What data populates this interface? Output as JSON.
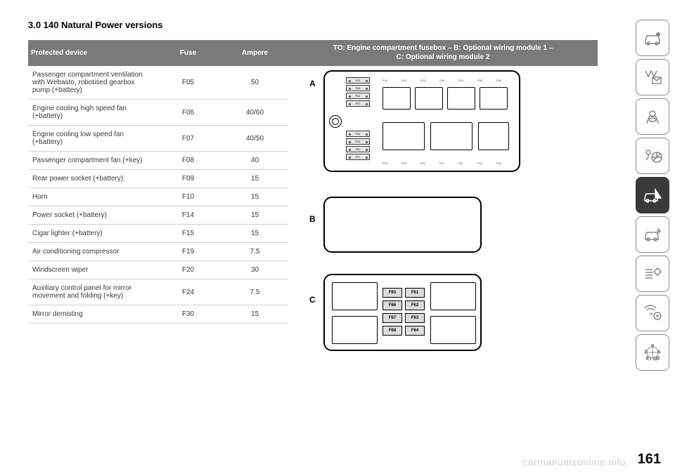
{
  "title": "3.0 140 Natural Power versions",
  "table": {
    "headers": {
      "device": "Protected device",
      "fuse": "Fuse",
      "ampere": "Ampere",
      "to": "TO: Engine compartment fusebox – B: Optional wiring module 1 –\nC: Optional wiring module 2"
    },
    "rows": [
      {
        "device": "Passenger compartment ventilation with Webasto, robotised gearbox pump (+battery)",
        "fuse": "F05",
        "ampere": "50"
      },
      {
        "device": "Engine cooling high speed fan (+battery)",
        "fuse": "F06",
        "ampere": "40/60"
      },
      {
        "device": "Engine cooling low speed fan (+battery)",
        "fuse": "F07",
        "ampere": "40/50"
      },
      {
        "device": "Passenger compartment fan (+key)",
        "fuse": "F08",
        "ampere": "40"
      },
      {
        "device": "Rear power socket (+battery)",
        "fuse": "F09",
        "ampere": "15"
      },
      {
        "device": "Horn",
        "fuse": "F10",
        "ampere": "15"
      },
      {
        "device": "Power socket (+battery)",
        "fuse": "F14",
        "ampere": "15"
      },
      {
        "device": "Cigar lighter (+battery)",
        "fuse": "F15",
        "ampere": "15"
      },
      {
        "device": "Air conditioning compressor",
        "fuse": "F19",
        "ampere": "7.5"
      },
      {
        "device": "Windscreen wiper",
        "fuse": "F20",
        "ampere": "30"
      },
      {
        "device": "Auxiliary control panel for mirror movement and folding (+key)",
        "fuse": "F24",
        "ampere": "7.5"
      },
      {
        "device": "Mirror demisting",
        "fuse": "F30",
        "ampere": "15"
      }
    ]
  },
  "diagram": {
    "labels": {
      "a": "A",
      "b": "B",
      "c": "C"
    },
    "panelA_left_fuses": [
      "F03",
      "F08",
      "F04",
      "F07",
      "F06",
      "F05",
      "F02",
      "F01"
    ],
    "panelA_top_labels": [
      "F14",
      "F15",
      "F13",
      "F16",
      "F10",
      "F09",
      "F30"
    ],
    "panelA_bottom_labels": [
      "F23",
      "F18",
      "F21",
      "F17",
      "F11",
      "F22",
      "F20"
    ],
    "panelC_fuses": [
      [
        "F65",
        "F61"
      ],
      [
        "F66",
        "F62"
      ],
      [
        "F67",
        "F63"
      ],
      [
        "F68",
        "F64"
      ]
    ]
  },
  "sidebar_icons": [
    "car-info-icon",
    "light-mail-icon",
    "airbag-icon",
    "key-wheel-icon",
    "emergency-car-icon",
    "car-tools-icon",
    "settings-list-icon",
    "audio-nav-icon",
    "compass-icon"
  ],
  "active_sidebar_index": 4,
  "page_number": "161",
  "watermark": "carmanualsonline.info",
  "colors": {
    "header_bg": "#7a7a7a",
    "header_text": "#ffffff",
    "row_border": "#d0d0d0",
    "text": "#3a3a3a",
    "watermark": "#d0d0d0",
    "nav_border": "#888888",
    "nav_active_bg": "#3a3a3a"
  }
}
